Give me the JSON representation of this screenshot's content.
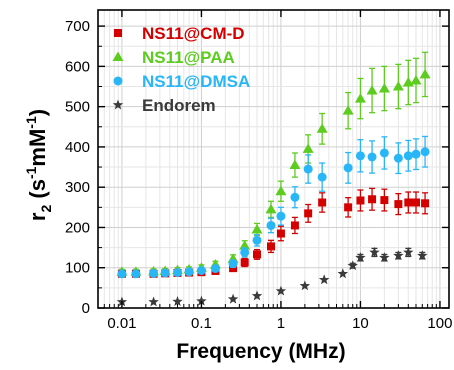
{
  "chart_data": {
    "type": "scatter",
    "xlabel": "Frequency (MHz)",
    "ylabel_main": "r",
    "ylabel_sub": "2",
    "ylabel_units": " (s",
    "ylabel_exp1": "-1",
    "ylabel_mid": "mM",
    "ylabel_exp2": "-1",
    "ylabel_close": ")",
    "xscale": "log",
    "xlim": [
      0.005,
      130
    ],
    "ylim": [
      0,
      740
    ],
    "grid": true,
    "legend_position": "top-left",
    "x_ticks": [
      {
        "value": 0.01,
        "label": "0.01"
      },
      {
        "value": 0.1,
        "label": "0.1"
      },
      {
        "value": 1,
        "label": "1"
      },
      {
        "value": 10,
        "label": "10"
      },
      {
        "value": 100,
        "label": "100"
      }
    ],
    "y_ticks": [
      {
        "value": 0,
        "label": "0"
      },
      {
        "value": 100,
        "label": "100"
      },
      {
        "value": 200,
        "label": "200"
      },
      {
        "value": 300,
        "label": "300"
      },
      {
        "value": 400,
        "label": "400"
      },
      {
        "value": 500,
        "label": "500"
      },
      {
        "value": 600,
        "label": "600"
      },
      {
        "value": 700,
        "label": "700"
      }
    ],
    "x": [
      0.01,
      0.015,
      0.025,
      0.035,
      0.05,
      0.07,
      0.1,
      0.15,
      0.25,
      0.35,
      0.5,
      0.75,
      1.0,
      1.5,
      2.2,
      3.3,
      7,
      10,
      14,
      20,
      30,
      40,
      50,
      65
    ],
    "series": [
      {
        "name": "NS11@CM-D",
        "marker": "square",
        "color": "#d40000",
        "y": [
          85,
          85,
          85,
          86,
          87,
          88,
          89,
          92,
          99,
          113,
          133,
          153,
          185,
          205,
          235,
          262,
          250,
          267,
          270,
          268,
          258,
          262,
          262,
          260
        ],
        "err": [
          6,
          6,
          6,
          6,
          6,
          6,
          6,
          7,
          8,
          10,
          12,
          15,
          18,
          20,
          22,
          24,
          24,
          26,
          27,
          27,
          26,
          26,
          26,
          26
        ]
      },
      {
        "name": "NS11@PAA",
        "marker": "triangle",
        "color": "#5ccc1f",
        "y": [
          90,
          90,
          91,
          92,
          94,
          96,
          100,
          108,
          122,
          155,
          195,
          245,
          290,
          355,
          395,
          445,
          490,
          520,
          540,
          545,
          550,
          560,
          565,
          580
        ],
        "err": [
          6,
          6,
          6,
          6,
          6,
          6,
          7,
          8,
          10,
          12,
          15,
          20,
          25,
          30,
          35,
          38,
          45,
          50,
          55,
          55,
          55,
          55,
          55,
          55
        ]
      },
      {
        "name": "NS11@DMSA",
        "marker": "circle",
        "color": "#29b6f6",
        "y": [
          85,
          85,
          86,
          87,
          88,
          90,
          93,
          98,
          110,
          138,
          168,
          205,
          228,
          275,
          345,
          325,
          348,
          378,
          375,
          385,
          372,
          378,
          382,
          388
        ],
        "err": [
          6,
          6,
          6,
          6,
          6,
          6,
          6,
          7,
          9,
          11,
          14,
          18,
          22,
          26,
          35,
          35,
          38,
          40,
          40,
          40,
          38,
          38,
          38,
          38
        ]
      },
      {
        "name": "Endorem",
        "marker": "star",
        "color": "#3a3a3a",
        "x": [
          0.01,
          0.025,
          0.05,
          0.1,
          0.25,
          0.5,
          1.0,
          2.0,
          3.5,
          6,
          8,
          10,
          15,
          20,
          30,
          40,
          60
        ],
        "y": [
          15,
          15,
          16,
          17,
          22,
          30,
          42,
          55,
          70,
          85,
          105,
          125,
          138,
          125,
          130,
          138,
          130
        ],
        "err": [
          0,
          0,
          0,
          0,
          0,
          0,
          0,
          0,
          0,
          0,
          6,
          8,
          10,
          8,
          8,
          10,
          8
        ]
      }
    ]
  }
}
